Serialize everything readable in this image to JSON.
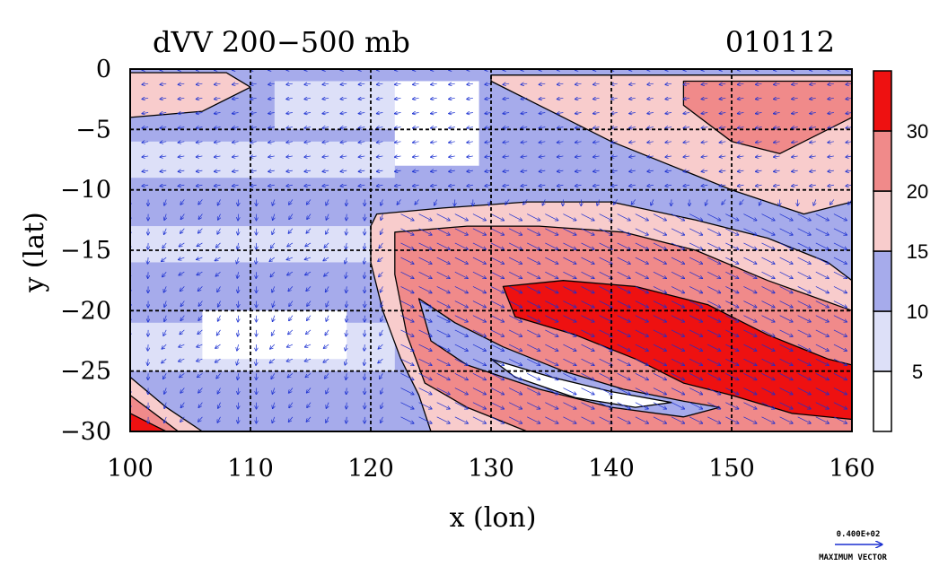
{
  "chart_data": {
    "type": "heatmap",
    "title": "dVV 200−500 mb",
    "date_label": "010112",
    "xlabel": "x (lon)",
    "ylabel": "y (lat)",
    "xlim": [
      100,
      160
    ],
    "ylim": [
      -30,
      0
    ],
    "xticks": [
      {
        "value": 100,
        "label": "100"
      },
      {
        "value": 110,
        "label": "110"
      },
      {
        "value": 120,
        "label": "120"
      },
      {
        "value": 130,
        "label": "130"
      },
      {
        "value": 140,
        "label": "140"
      },
      {
        "value": 150,
        "label": "150"
      },
      {
        "value": 160,
        "label": "160"
      }
    ],
    "yticks": [
      {
        "value": 0,
        "label": "0"
      },
      {
        "value": -5,
        "label": "−5"
      },
      {
        "value": -10,
        "label": "−10"
      },
      {
        "value": -15,
        "label": "−15"
      },
      {
        "value": -20,
        "label": "−20"
      },
      {
        "value": -25,
        "label": "−25"
      },
      {
        "value": -30,
        "label": "−30"
      }
    ],
    "grid": true,
    "colorbar": {
      "placement": "right",
      "levels": [
        0,
        5,
        10,
        15,
        20,
        30,
        40
      ],
      "tick_labels": [
        "5",
        "10",
        "15",
        "20",
        "30"
      ],
      "colors": [
        "#ffffff",
        "#dde0f8",
        "#a6abeb",
        "#f8cccc",
        "#f08a8a",
        "#ee1111"
      ]
    },
    "vector_color": "#1a2fd0",
    "reference_vector": {
      "value_label": "0.400E+02",
      "caption": "MAXIMUM VECTOR"
    },
    "regions": [
      {
        "name": "ne-pink-band",
        "level": 15,
        "points": [
          [
            130,
            -0.5
          ],
          [
            160,
            -0.5
          ],
          [
            160,
            -11
          ],
          [
            156,
            -12
          ],
          [
            150,
            -10
          ],
          [
            140,
            -6
          ],
          [
            134,
            -3
          ],
          [
            130,
            -1
          ]
        ]
      },
      {
        "name": "ne-red-patch",
        "level": 20,
        "points": [
          [
            146,
            -1
          ],
          [
            160,
            -1
          ],
          [
            160,
            -4
          ],
          [
            154,
            -7
          ],
          [
            150,
            -6
          ],
          [
            146,
            -3
          ]
        ]
      },
      {
        "name": "nw-pink-patch",
        "level": 15,
        "points": [
          [
            100,
            -0.3
          ],
          [
            108,
            -0.3
          ],
          [
            110,
            -1.5
          ],
          [
            106,
            -3.5
          ],
          [
            100,
            -4
          ]
        ]
      },
      {
        "name": "main-pink-band",
        "level": 15,
        "points": [
          [
            120.5,
            -12
          ],
          [
            126,
            -11.5
          ],
          [
            133,
            -11
          ],
          [
            140,
            -11
          ],
          [
            147,
            -12.5
          ],
          [
            153,
            -14
          ],
          [
            158,
            -16
          ],
          [
            160,
            -17.5
          ],
          [
            160,
            -30
          ],
          [
            125,
            -30
          ],
          [
            124,
            -27
          ],
          [
            122.5,
            -24
          ],
          [
            121,
            -20
          ],
          [
            120,
            -16
          ],
          [
            120,
            -13
          ]
        ]
      },
      {
        "name": "main-salmon-band",
        "level": 20,
        "points": [
          [
            122,
            -13.5
          ],
          [
            128,
            -13
          ],
          [
            134,
            -13
          ],
          [
            141,
            -13.5
          ],
          [
            147,
            -15
          ],
          [
            153,
            -17.5
          ],
          [
            160,
            -20
          ],
          [
            160,
            -30
          ],
          [
            133,
            -30
          ],
          [
            128,
            -28
          ],
          [
            124.5,
            -26
          ],
          [
            123,
            -22
          ],
          [
            122,
            -17
          ]
        ]
      },
      {
        "name": "main-red-core",
        "level": 30,
        "points": [
          [
            131,
            -18
          ],
          [
            136,
            -17.5
          ],
          [
            142,
            -18
          ],
          [
            148,
            -19.5
          ],
          [
            153,
            -22
          ],
          [
            158,
            -24
          ],
          [
            160,
            -24.5
          ],
          [
            160,
            -29
          ],
          [
            155,
            -28.5
          ],
          [
            150,
            -27
          ],
          [
            146,
            -26
          ],
          [
            142,
            -24
          ],
          [
            137,
            -22
          ],
          [
            132,
            -20.5
          ]
        ]
      },
      {
        "name": "jet-blue-stripe",
        "level": 10,
        "points": [
          [
            124,
            -19
          ],
          [
            127,
            -21
          ],
          [
            131,
            -23
          ],
          [
            136,
            -25
          ],
          [
            141,
            -26.5
          ],
          [
            146,
            -27.5
          ],
          [
            149,
            -28
          ],
          [
            146,
            -28.8
          ],
          [
            140,
            -28
          ],
          [
            134,
            -26.5
          ],
          [
            128,
            -24.5
          ],
          [
            125,
            -22.5
          ]
        ]
      },
      {
        "name": "jet-white-stripe",
        "level": 0,
        "points": [
          [
            130,
            -24
          ],
          [
            135,
            -25.5
          ],
          [
            140,
            -26.7
          ],
          [
            145,
            -27.6
          ],
          [
            142,
            -28
          ],
          [
            137,
            -27.2
          ],
          [
            132,
            -25.5
          ]
        ]
      },
      {
        "name": "sw-pink-corner",
        "level": 15,
        "points": [
          [
            100,
            -25.5
          ],
          [
            103,
            -28
          ],
          [
            106,
            -30
          ],
          [
            100,
            -30
          ]
        ]
      },
      {
        "name": "sw-salmon-corner",
        "level": 20,
        "points": [
          [
            100,
            -27
          ],
          [
            102,
            -28.5
          ],
          [
            104,
            -30
          ],
          [
            100,
            -30
          ]
        ]
      },
      {
        "name": "sw-red-corner",
        "level": 30,
        "points": [
          [
            100,
            -28.5
          ],
          [
            102,
            -29.5
          ],
          [
            103,
            -30
          ],
          [
            100,
            -30
          ]
        ]
      }
    ]
  }
}
